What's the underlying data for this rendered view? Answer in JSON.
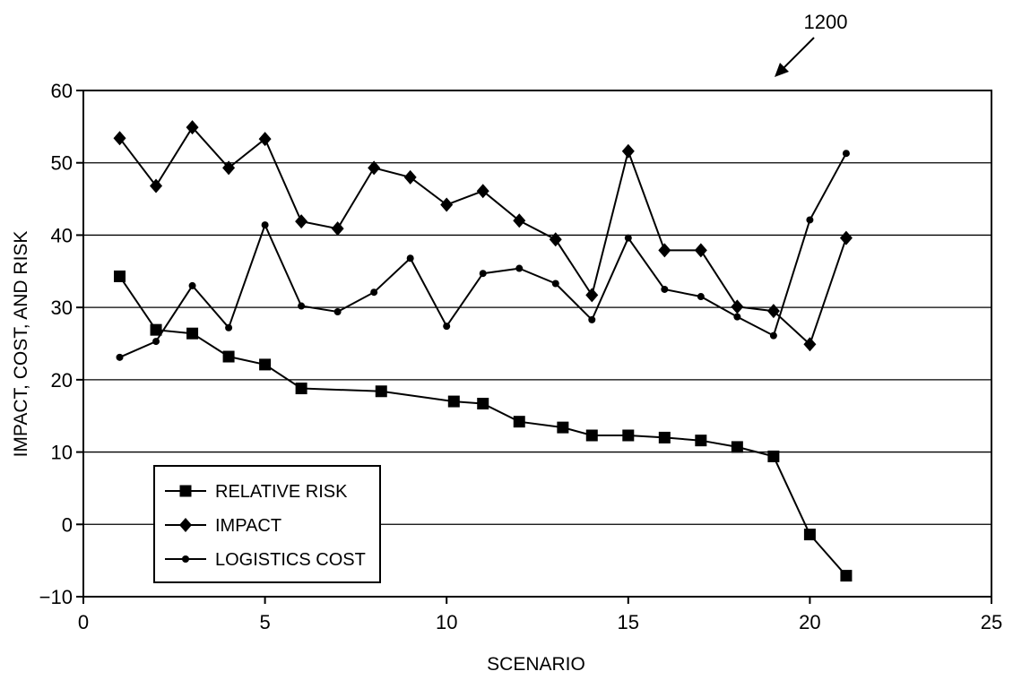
{
  "figure": {
    "reference_number": "1200"
  },
  "chart_data": {
    "type": "line",
    "xlabel": "SCENARIO",
    "ylabel": "IMPACT, COST, AND RISK",
    "xlim": [
      0,
      25
    ],
    "ylim": [
      -10,
      60
    ],
    "xticks": [
      0,
      5,
      10,
      15,
      20,
      25
    ],
    "yticks": [
      -10,
      0,
      10,
      20,
      30,
      40,
      50,
      60
    ],
    "xtick_labels": [
      "0",
      "5",
      "10",
      "15",
      "20",
      "25"
    ],
    "ytick_labels": [
      "-10",
      "0",
      "10",
      "20",
      "30",
      "40",
      "50",
      "60"
    ],
    "grid": "horizontal",
    "legend_position": "bottom-left",
    "series": [
      {
        "name": "RELATIVE RISK",
        "marker": "square",
        "points": [
          [
            1,
            34.3
          ],
          [
            2,
            26.9
          ],
          [
            3,
            26.4
          ],
          [
            4,
            23.2
          ],
          [
            5,
            22.1
          ],
          [
            6,
            18.8
          ],
          [
            8.2,
            18.4
          ],
          [
            10.2,
            17.0
          ],
          [
            11,
            16.7
          ],
          [
            12,
            14.2
          ],
          [
            13.2,
            13.4
          ],
          [
            14,
            12.3
          ],
          [
            15,
            12.3
          ],
          [
            16,
            12.0
          ],
          [
            17,
            11.6
          ],
          [
            18,
            10.7
          ],
          [
            19,
            9.4
          ],
          [
            20,
            -1.4
          ],
          [
            21,
            -7.1
          ]
        ]
      },
      {
        "name": "IMPACT",
        "marker": "diamond",
        "points": [
          [
            1,
            53.4
          ],
          [
            2,
            46.8
          ],
          [
            3,
            54.9
          ],
          [
            4,
            49.3
          ],
          [
            5,
            53.3
          ],
          [
            6,
            41.9
          ],
          [
            7,
            40.9
          ],
          [
            8,
            49.3
          ],
          [
            9,
            48.0
          ],
          [
            10,
            44.2
          ],
          [
            11,
            46.1
          ],
          [
            12,
            42.0
          ],
          [
            13,
            39.4
          ],
          [
            14,
            31.7
          ],
          [
            15,
            51.6
          ],
          [
            16,
            37.9
          ],
          [
            17,
            37.9
          ],
          [
            18,
            30.1
          ],
          [
            19,
            29.5
          ],
          [
            20,
            24.9
          ],
          [
            21,
            39.6
          ]
        ]
      },
      {
        "name": "LOGISTICS COST",
        "marker": "dot",
        "points": [
          [
            1,
            23.1
          ],
          [
            2,
            25.3
          ],
          [
            3,
            33.0
          ],
          [
            4,
            27.2
          ],
          [
            5,
            41.4
          ],
          [
            6,
            30.2
          ],
          [
            7,
            29.4
          ],
          [
            8,
            32.1
          ],
          [
            9,
            36.8
          ],
          [
            10,
            27.4
          ],
          [
            11,
            34.7
          ],
          [
            12,
            35.4
          ],
          [
            13,
            33.3
          ],
          [
            14,
            28.3
          ],
          [
            15,
            39.6
          ],
          [
            16,
            32.5
          ],
          [
            17,
            31.5
          ],
          [
            18,
            28.7
          ],
          [
            19,
            26.1
          ],
          [
            20,
            42.1
          ],
          [
            21,
            51.3
          ]
        ]
      }
    ]
  }
}
